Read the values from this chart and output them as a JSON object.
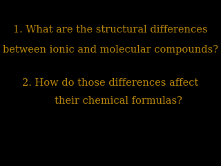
{
  "background_color": "#000000",
  "text_color": "#b8860b",
  "line1": "1. What are the structural differences",
  "line2": "between ionic and molecular compounds?",
  "line3": "",
  "line4": "2. How do those differences affect",
  "line5": "     their chemical formulas?",
  "fontsize": 10.5,
  "font_family": "serif"
}
